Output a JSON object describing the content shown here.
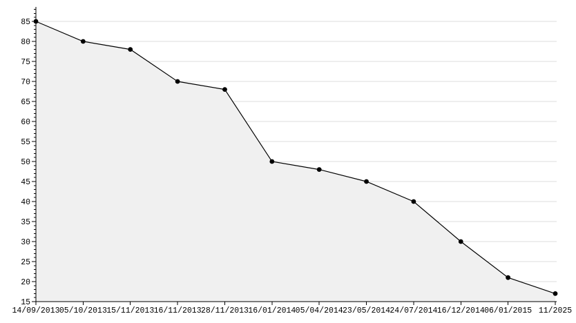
{
  "chart": {
    "background_color": "#ffffff",
    "fill_color": "#f0f0f0",
    "grid_color": "#dedede",
    "line_color": "#000000",
    "marker_color": "#000000",
    "axis_color": "#000000",
    "text_color": "#000000"
  },
  "chart_data": {
    "type": "area",
    "categories": [
      "14/09/2013",
      "05/10/2013",
      "15/11/2013",
      "16/11/2013",
      "28/11/2013",
      "16/01/2014",
      "05/04/2014",
      "23/05/2014",
      "24/07/2014",
      "16/12/2014",
      "06/01/2015",
      "11/2025"
    ],
    "values": [
      85,
      80,
      78,
      70,
      68,
      50,
      48,
      45,
      40,
      30,
      21,
      17
    ],
    "title": "",
    "subtitle": "",
    "xlabel": "",
    "ylabel": "",
    "ylim": [
      15,
      85
    ],
    "y_major_step": 5,
    "y_minor_step": 1,
    "y_tick_labels": [
      "15",
      "20",
      "25",
      "30",
      "35",
      "40",
      "45",
      "50",
      "55",
      "60",
      "65",
      "70",
      "75",
      "80",
      "85"
    ],
    "grid": "horizontal",
    "legend_position": "none",
    "marker_shape": "circle"
  }
}
